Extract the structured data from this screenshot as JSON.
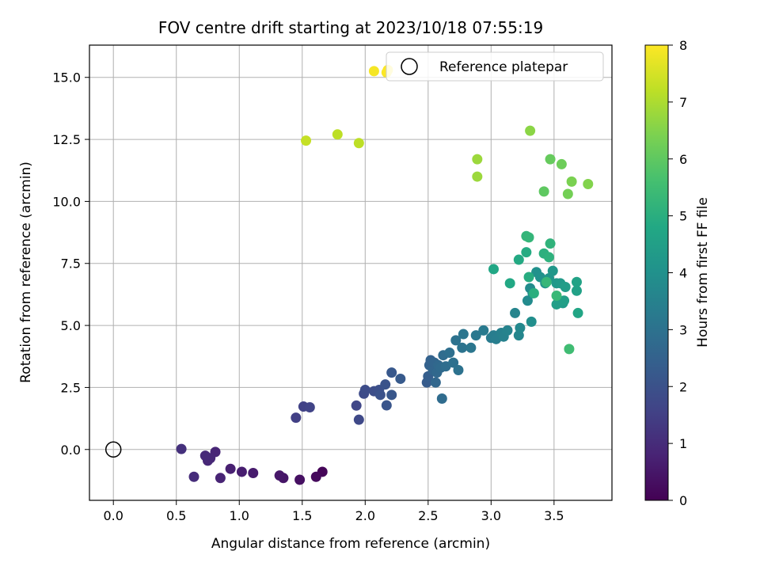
{
  "chart_data": {
    "type": "scatter",
    "title": "FOV centre drift starting at 2023/10/18 07:55:19",
    "xlabel": "Angular distance from reference (arcmin)",
    "ylabel": "Rotation from reference (arcmin)",
    "xlim": [
      -0.19,
      3.96
    ],
    "ylim": [
      -2.05,
      16.3
    ],
    "xticks": [
      0.0,
      0.5,
      1.0,
      1.5,
      2.0,
      2.5,
      3.0,
      3.5
    ],
    "xtick_labels": [
      "0.0",
      "0.5",
      "1.0",
      "1.5",
      "2.0",
      "2.5",
      "3.0",
      "3.5"
    ],
    "yticks": [
      0.0,
      2.5,
      5.0,
      7.5,
      10.0,
      12.5,
      15.0
    ],
    "ytick_labels": [
      "0.0",
      "2.5",
      "5.0",
      "7.5",
      "10.0",
      "12.5",
      "15.0"
    ],
    "grid": true,
    "colormap": "viridis",
    "colorbar": {
      "label": "Hours from first FF file",
      "range": [
        0,
        8
      ],
      "ticks": [
        0,
        1,
        2,
        3,
        4,
        5,
        6,
        7,
        8
      ],
      "tick_labels": [
        "0",
        "1",
        "2",
        "3",
        "4",
        "5",
        "6",
        "7",
        "8"
      ]
    },
    "legend": {
      "position": "top-right",
      "entries": [
        {
          "label": "Reference platepar",
          "marker": "open-circle",
          "color": "#000000"
        }
      ]
    },
    "reference_point": {
      "x": 0.0,
      "y": 0.0
    },
    "points": [
      {
        "x": 1.66,
        "y": -0.9,
        "c": 0.1
      },
      {
        "x": 1.61,
        "y": -1.1,
        "c": 0.2
      },
      {
        "x": 1.48,
        "y": -1.22,
        "c": 0.35
      },
      {
        "x": 1.35,
        "y": -1.15,
        "c": 0.45
      },
      {
        "x": 1.32,
        "y": -1.05,
        "c": 0.5
      },
      {
        "x": 1.11,
        "y": -0.95,
        "c": 0.6
      },
      {
        "x": 1.02,
        "y": -0.9,
        "c": 0.65
      },
      {
        "x": 0.93,
        "y": -0.78,
        "c": 0.7
      },
      {
        "x": 0.85,
        "y": -1.15,
        "c": 0.8
      },
      {
        "x": 0.81,
        "y": -0.1,
        "c": 0.85
      },
      {
        "x": 0.77,
        "y": -0.35,
        "c": 0.9
      },
      {
        "x": 0.75,
        "y": -0.45,
        "c": 0.9
      },
      {
        "x": 0.73,
        "y": -0.25,
        "c": 0.95
      },
      {
        "x": 0.64,
        "y": -1.1,
        "c": 1.0
      },
      {
        "x": 0.54,
        "y": 0.02,
        "c": 1.1
      },
      {
        "x": 1.45,
        "y": 1.28,
        "c": 1.5
      },
      {
        "x": 1.51,
        "y": 1.73,
        "c": 1.55
      },
      {
        "x": 1.56,
        "y": 1.7,
        "c": 1.6
      },
      {
        "x": 1.93,
        "y": 1.77,
        "c": 1.7
      },
      {
        "x": 1.95,
        "y": 1.2,
        "c": 1.75
      },
      {
        "x": 1.99,
        "y": 2.25,
        "c": 1.8
      },
      {
        "x": 2.0,
        "y": 2.4,
        "c": 1.85
      },
      {
        "x": 2.07,
        "y": 2.35,
        "c": 1.9
      },
      {
        "x": 2.11,
        "y": 2.4,
        "c": 1.95
      },
      {
        "x": 2.12,
        "y": 2.2,
        "c": 2.0
      },
      {
        "x": 2.16,
        "y": 2.62,
        "c": 2.05
      },
      {
        "x": 2.17,
        "y": 1.78,
        "c": 2.1
      },
      {
        "x": 2.21,
        "y": 2.2,
        "c": 2.15
      },
      {
        "x": 2.21,
        "y": 3.1,
        "c": 2.2
      },
      {
        "x": 2.28,
        "y": 2.85,
        "c": 2.25
      },
      {
        "x": 2.49,
        "y": 2.7,
        "c": 2.3
      },
      {
        "x": 2.5,
        "y": 2.95,
        "c": 2.4
      },
      {
        "x": 2.51,
        "y": 3.4,
        "c": 2.5
      },
      {
        "x": 2.52,
        "y": 3.6,
        "c": 2.5
      },
      {
        "x": 2.54,
        "y": 3.2,
        "c": 2.6
      },
      {
        "x": 2.55,
        "y": 3.5,
        "c": 2.6
      },
      {
        "x": 2.56,
        "y": 2.7,
        "c": 2.65
      },
      {
        "x": 2.57,
        "y": 3.1,
        "c": 2.7
      },
      {
        "x": 2.58,
        "y": 3.4,
        "c": 2.7
      },
      {
        "x": 2.6,
        "y": 3.3,
        "c": 2.75
      },
      {
        "x": 2.61,
        "y": 2.05,
        "c": 2.8
      },
      {
        "x": 2.62,
        "y": 3.8,
        "c": 2.8
      },
      {
        "x": 2.64,
        "y": 3.35,
        "c": 2.85
      },
      {
        "x": 2.67,
        "y": 3.9,
        "c": 2.9
      },
      {
        "x": 2.7,
        "y": 3.5,
        "c": 2.95
      },
      {
        "x": 2.72,
        "y": 4.4,
        "c": 3.0
      },
      {
        "x": 2.74,
        "y": 3.2,
        "c": 3.0
      },
      {
        "x": 2.77,
        "y": 4.1,
        "c": 3.05
      },
      {
        "x": 2.78,
        "y": 4.65,
        "c": 3.1
      },
      {
        "x": 2.84,
        "y": 4.1,
        "c": 3.15
      },
      {
        "x": 2.88,
        "y": 4.6,
        "c": 3.2
      },
      {
        "x": 2.94,
        "y": 4.8,
        "c": 3.25
      },
      {
        "x": 3.0,
        "y": 4.5,
        "c": 3.3
      },
      {
        "x": 3.02,
        "y": 4.6,
        "c": 3.35
      },
      {
        "x": 3.04,
        "y": 4.45,
        "c": 3.4
      },
      {
        "x": 3.08,
        "y": 4.7,
        "c": 3.45
      },
      {
        "x": 3.1,
        "y": 4.55,
        "c": 3.5
      },
      {
        "x": 3.13,
        "y": 4.8,
        "c": 3.55
      },
      {
        "x": 3.19,
        "y": 5.5,
        "c": 3.6
      },
      {
        "x": 3.22,
        "y": 4.6,
        "c": 3.65
      },
      {
        "x": 3.23,
        "y": 4.9,
        "c": 3.7
      },
      {
        "x": 3.29,
        "y": 6.0,
        "c": 3.8
      },
      {
        "x": 3.31,
        "y": 6.5,
        "c": 3.85
      },
      {
        "x": 3.32,
        "y": 5.15,
        "c": 3.9
      },
      {
        "x": 3.33,
        "y": 6.3,
        "c": 3.95
      },
      {
        "x": 3.36,
        "y": 7.15,
        "c": 4.0
      },
      {
        "x": 3.39,
        "y": 6.95,
        "c": 4.05
      },
      {
        "x": 3.43,
        "y": 6.7,
        "c": 4.1
      },
      {
        "x": 3.46,
        "y": 6.9,
        "c": 4.15
      },
      {
        "x": 3.49,
        "y": 7.2,
        "c": 4.2
      },
      {
        "x": 3.52,
        "y": 6.7,
        "c": 4.25
      },
      {
        "x": 3.55,
        "y": 6.7,
        "c": 4.3
      },
      {
        "x": 3.57,
        "y": 5.9,
        "c": 4.35
      },
      {
        "x": 3.59,
        "y": 6.55,
        "c": 4.4
      },
      {
        "x": 3.52,
        "y": 5.85,
        "c": 4.45
      },
      {
        "x": 3.58,
        "y": 6.0,
        "c": 4.5
      },
      {
        "x": 3.68,
        "y": 6.4,
        "c": 4.55
      },
      {
        "x": 3.68,
        "y": 6.75,
        "c": 4.6
      },
      {
        "x": 3.69,
        "y": 5.5,
        "c": 4.7
      },
      {
        "x": 3.02,
        "y": 7.27,
        "c": 4.75
      },
      {
        "x": 3.15,
        "y": 6.7,
        "c": 4.8
      },
      {
        "x": 3.22,
        "y": 7.65,
        "c": 4.85
      },
      {
        "x": 3.28,
        "y": 7.95,
        "c": 4.9
      },
      {
        "x": 3.3,
        "y": 6.95,
        "c": 4.95
      },
      {
        "x": 3.34,
        "y": 6.3,
        "c": 5.0
      },
      {
        "x": 3.42,
        "y": 7.9,
        "c": 5.05
      },
      {
        "x": 3.46,
        "y": 7.75,
        "c": 5.1
      },
      {
        "x": 3.47,
        "y": 8.3,
        "c": 5.15
      },
      {
        "x": 3.28,
        "y": 8.6,
        "c": 5.2
      },
      {
        "x": 3.3,
        "y": 8.55,
        "c": 5.25
      },
      {
        "x": 3.44,
        "y": 6.75,
        "c": 5.3
      },
      {
        "x": 3.52,
        "y": 6.2,
        "c": 5.35
      },
      {
        "x": 3.62,
        "y": 4.05,
        "c": 5.5
      },
      {
        "x": 3.42,
        "y": 10.4,
        "c": 6.0
      },
      {
        "x": 3.47,
        "y": 11.7,
        "c": 6.1
      },
      {
        "x": 3.56,
        "y": 11.5,
        "c": 6.2
      },
      {
        "x": 3.61,
        "y": 10.3,
        "c": 6.3
      },
      {
        "x": 3.64,
        "y": 10.8,
        "c": 6.4
      },
      {
        "x": 3.77,
        "y": 10.7,
        "c": 6.5
      },
      {
        "x": 3.31,
        "y": 12.85,
        "c": 6.6
      },
      {
        "x": 2.89,
        "y": 11.7,
        "c": 6.8
      },
      {
        "x": 2.89,
        "y": 11.0,
        "c": 6.8
      },
      {
        "x": 1.53,
        "y": 12.45,
        "c": 7.3
      },
      {
        "x": 1.78,
        "y": 12.7,
        "c": 7.2
      },
      {
        "x": 1.95,
        "y": 12.35,
        "c": 7.2
      },
      {
        "x": 2.07,
        "y": 15.25,
        "c": 7.9
      },
      {
        "x": 2.17,
        "y": 15.2,
        "c": 7.95
      },
      {
        "x": 2.18,
        "y": 15.3,
        "c": 8.0
      }
    ]
  }
}
